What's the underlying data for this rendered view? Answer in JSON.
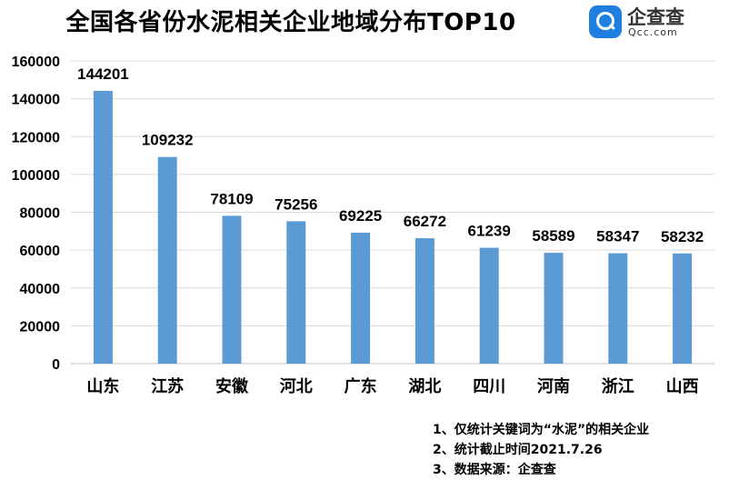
{
  "header": {
    "title": "全国各省份水泥相关企业地域分布TOP10",
    "logo": {
      "icon": "qcc-magnifier-icon",
      "name": "企查查",
      "domain": "Qcc.com",
      "brand_color": "#1f7fe0"
    }
  },
  "chart_data": {
    "type": "bar",
    "title": "全国各省份水泥相关企业地域分布TOP10",
    "categories": [
      "山东",
      "江苏",
      "安徽",
      "河北",
      "广东",
      "湖北",
      "四川",
      "河南",
      "浙江",
      "山西"
    ],
    "values": [
      144201,
      109232,
      78109,
      75256,
      69225,
      66272,
      61239,
      58589,
      58347,
      58232
    ],
    "ylim": [
      0,
      160000
    ],
    "yticks": [
      0,
      20000,
      40000,
      60000,
      80000,
      100000,
      120000,
      140000,
      160000
    ],
    "xlabel": "",
    "ylabel": "",
    "grid": true,
    "bar_color": "#5b9bd5",
    "data_labels": true
  },
  "notes": [
    "1、仅统计关键词为“水泥”的相关企业",
    "2、统计截止时间2021.7.26",
    "3、数据来源：企查查"
  ]
}
